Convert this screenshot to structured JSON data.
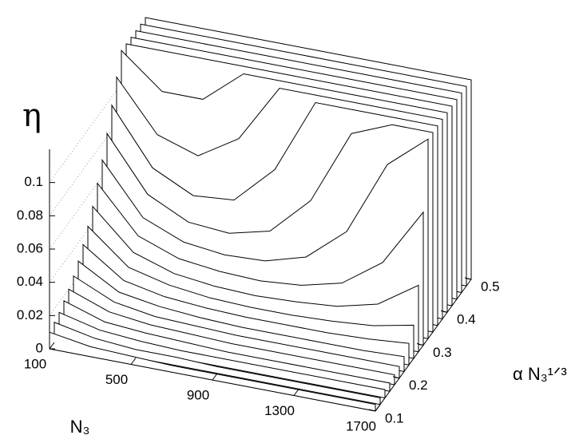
{
  "chart_data": {
    "type": "waterfall3d",
    "zlabel": "η",
    "xlabel": "N₃",
    "ylabel": "α N₃¹ᐟ³",
    "x": [
      100,
      300,
      500,
      700,
      900,
      1100,
      1300,
      1500,
      1700
    ],
    "xlim": [
      100,
      1700
    ],
    "xticks": [
      100,
      500,
      900,
      1300,
      1700
    ],
    "ylim": [
      0.1,
      0.5
    ],
    "yticks": [
      0.1,
      0.2,
      0.3,
      0.4,
      0.5
    ],
    "zlim": [
      0,
      0.12
    ],
    "zticks": [
      0,
      0.02,
      0.04,
      0.06,
      0.08,
      0.1
    ],
    "color": "#000000",
    "series": [
      {
        "y": 0.1,
        "values": [
          0.01,
          0.006,
          0.005,
          0.004,
          0.004,
          0.004,
          0.004,
          0.004,
          0.004
        ]
      },
      {
        "y": 0.12,
        "values": [
          0.012,
          0.007,
          0.005,
          0.005,
          0.004,
          0.004,
          0.004,
          0.004,
          0.004
        ]
      },
      {
        "y": 0.14,
        "values": [
          0.014,
          0.008,
          0.006,
          0.005,
          0.005,
          0.005,
          0.005,
          0.005,
          0.005
        ]
      },
      {
        "y": 0.16,
        "values": [
          0.017,
          0.009,
          0.007,
          0.006,
          0.005,
          0.005,
          0.005,
          0.005,
          0.005
        ]
      },
      {
        "y": 0.18,
        "values": [
          0.02,
          0.011,
          0.008,
          0.007,
          0.006,
          0.006,
          0.006,
          0.006,
          0.006
        ]
      },
      {
        "y": 0.2,
        "values": [
          0.024,
          0.013,
          0.009,
          0.008,
          0.007,
          0.007,
          0.007,
          0.007,
          0.007
        ]
      },
      {
        "y": 0.22,
        "values": [
          0.029,
          0.015,
          0.011,
          0.009,
          0.008,
          0.008,
          0.008,
          0.008,
          0.009
        ]
      },
      {
        "y": 0.24,
        "values": [
          0.035,
          0.018,
          0.013,
          0.011,
          0.01,
          0.01,
          0.01,
          0.011,
          0.013
        ]
      },
      {
        "y": 0.26,
        "values": [
          0.042,
          0.022,
          0.016,
          0.013,
          0.012,
          0.012,
          0.013,
          0.015,
          0.02
        ]
      },
      {
        "y": 0.28,
        "values": [
          0.05,
          0.027,
          0.019,
          0.016,
          0.015,
          0.016,
          0.018,
          0.024,
          0.04
        ]
      },
      {
        "y": 0.3,
        "values": [
          0.06,
          0.033,
          0.024,
          0.021,
          0.02,
          0.022,
          0.028,
          0.045,
          0.08
        ]
      },
      {
        "y": 0.32,
        "values": [
          0.07,
          0.04,
          0.03,
          0.027,
          0.028,
          0.035,
          0.055,
          0.1,
          0.12
        ]
      },
      {
        "y": 0.34,
        "values": [
          0.082,
          0.05,
          0.038,
          0.036,
          0.042,
          0.065,
          0.11,
          0.12,
          0.12
        ]
      },
      {
        "y": 0.36,
        "values": [
          0.095,
          0.062,
          0.05,
          0.052,
          0.075,
          0.12,
          0.12,
          0.12,
          0.12
        ]
      },
      {
        "y": 0.38,
        "values": [
          0.108,
          0.078,
          0.07,
          0.085,
          0.12,
          0.12,
          0.12,
          0.12,
          0.12
        ]
      },
      {
        "y": 0.4,
        "values": [
          0.12,
          0.1,
          0.1,
          0.12,
          0.12,
          0.12,
          0.12,
          0.12,
          0.12
        ]
      },
      {
        "y": 0.42,
        "values": [
          0.12,
          0.12,
          0.12,
          0.12,
          0.12,
          0.12,
          0.12,
          0.12,
          0.12
        ]
      },
      {
        "y": 0.44,
        "values": [
          0.12,
          0.12,
          0.12,
          0.12,
          0.12,
          0.12,
          0.12,
          0.12,
          0.12
        ]
      },
      {
        "y": 0.46,
        "values": [
          0.12,
          0.12,
          0.12,
          0.12,
          0.12,
          0.12,
          0.12,
          0.12,
          0.12
        ]
      },
      {
        "y": 0.48,
        "values": [
          0.12,
          0.12,
          0.12,
          0.12,
          0.12,
          0.12,
          0.12,
          0.12,
          0.12
        ]
      },
      {
        "y": 0.5,
        "values": [
          0.12,
          0.12,
          0.12,
          0.12,
          0.12,
          0.12,
          0.12,
          0.12,
          0.12
        ]
      }
    ]
  }
}
